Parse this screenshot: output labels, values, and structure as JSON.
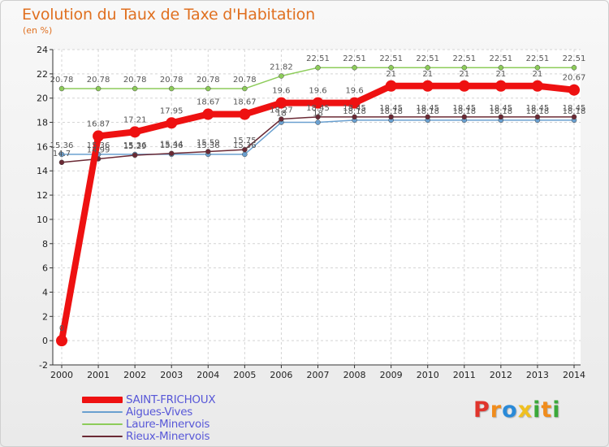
{
  "chart_data": {
    "type": "line",
    "title": "Evolution du Taux de Taxe d'Habitation",
    "subtitle": "(en %)",
    "xlabel": "",
    "ylabel": "(en %)",
    "categories": [
      "2000",
      "2001",
      "2002",
      "2003",
      "2004",
      "2005",
      "2006",
      "2007",
      "2008",
      "2009",
      "2010",
      "2011",
      "2012",
      "2013",
      "2014"
    ],
    "ylim": [
      -2,
      24
    ],
    "yticks": [
      "-2",
      "0",
      "2",
      "4",
      "6",
      "8",
      "10",
      "12",
      "14",
      "16",
      "18",
      "20",
      "22",
      "24"
    ],
    "grid": true,
    "series": [
      {
        "name": "Laure-Minervois",
        "color": "#8dcc5a",
        "values": [
          20.78,
          20.78,
          20.78,
          20.78,
          20.78,
          20.78,
          21.82,
          22.51,
          22.51,
          22.51,
          22.51,
          22.51,
          22.51,
          22.51,
          22.51
        ],
        "labels": [
          "20.78",
          "20.78",
          "20.78",
          "20.78",
          "20.78",
          "20.78",
          "21.82",
          "22.51",
          "22.51",
          "22.51",
          "22.51",
          "22.51",
          "22.51",
          "22.51",
          "22.51"
        ]
      },
      {
        "name": "Aigues-Vives",
        "color": "#6aa0d0",
        "values": [
          15.36,
          15.36,
          15.36,
          15.36,
          15.36,
          15.36,
          18,
          18,
          18.18,
          18.18,
          18.18,
          18.18,
          18.18,
          18.18,
          18.18
        ],
        "labels": [
          "15.36",
          "15.36",
          "15.36",
          "15.36",
          "15.36",
          "15.36",
          "18",
          "18",
          "18.18",
          "18.18",
          "18.18",
          "18.18",
          "18.18",
          "18.18",
          "18.18"
        ]
      },
      {
        "name": "Rieux-Minervois",
        "color": "#6b2a35",
        "values": [
          14.7,
          14.99,
          15.29,
          15.44,
          15.59,
          15.75,
          18.27,
          18.45,
          18.45,
          18.45,
          18.45,
          18.45,
          18.45,
          18.45,
          18.45
        ],
        "labels": [
          "14.7",
          "14.99",
          "15.29",
          "15.44",
          "15.59",
          "15.75",
          "18.27",
          "18.45",
          "18.45",
          "18.45",
          "18.45",
          "18.45",
          "18.45",
          "18.45",
          "18.45"
        ]
      },
      {
        "name": "SAINT-FRICHOUX",
        "color": "#ee1111",
        "values": [
          0,
          16.87,
          17.21,
          17.95,
          18.67,
          18.67,
          19.6,
          19.6,
          19.6,
          21,
          21,
          21,
          21,
          21,
          20.67
        ],
        "labels": [
          "0",
          "16.87",
          "17.21",
          "17.95",
          "18.67",
          "18.67",
          "19.6",
          "19.6",
          "19.6",
          "21",
          "21",
          "21",
          "21",
          "21",
          "20.67"
        ]
      }
    ]
  },
  "legend": [
    {
      "label": "SAINT-FRICHOUX",
      "color": "#ee1111"
    },
    {
      "label": "Aigues-Vives",
      "color": "#6aa0d0"
    },
    {
      "label": "Laure-Minervois",
      "color": "#8dcc5a"
    },
    {
      "label": "Rieux-Minervois",
      "color": "#6b2a35"
    }
  ],
  "logo": {
    "p": "P",
    "r": "r",
    "o": "o",
    "x": "x",
    "i1": "i",
    "t": "t",
    "i2": "i"
  }
}
